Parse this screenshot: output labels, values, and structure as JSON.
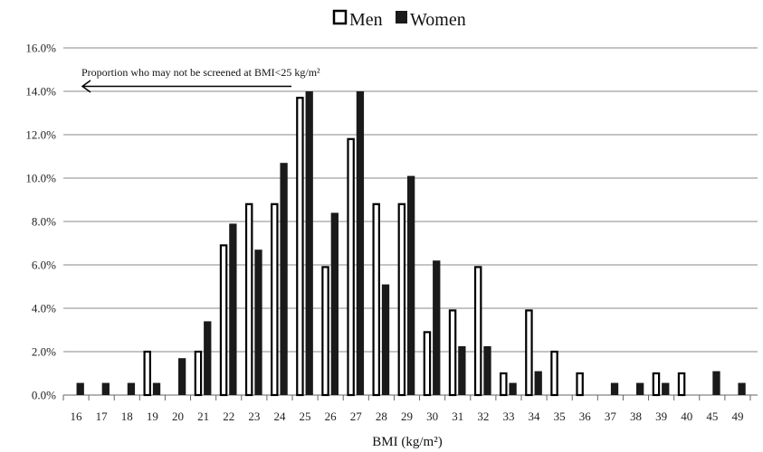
{
  "chart_data": {
    "type": "bar",
    "xlabel": "BMI (kg/m²)",
    "ylabel": "",
    "ylim": [
      0,
      16
    ],
    "y_ticks": [
      "0.0%",
      "2.0%",
      "4.0%",
      "6.0%",
      "8.0%",
      "10.0%",
      "12.0%",
      "14.0%",
      "16.0%"
    ],
    "grid": true,
    "legend_position": "top-center",
    "categories": [
      "16",
      "17",
      "18",
      "19",
      "20",
      "21",
      "22",
      "23",
      "24",
      "25",
      "26",
      "27",
      "28",
      "29",
      "30",
      "31",
      "32",
      "33",
      "34",
      "35",
      "36",
      "37",
      "38",
      "39",
      "40",
      "45",
      "49"
    ],
    "series": [
      {
        "name": "Men",
        "style": "outline",
        "color": "#000000",
        "values": [
          0,
          0,
          0,
          2.0,
          0,
          2.0,
          6.9,
          8.8,
          8.8,
          13.7,
          5.9,
          11.8,
          8.8,
          8.8,
          2.9,
          3.9,
          5.9,
          1.0,
          3.9,
          2.0,
          1.0,
          0,
          0,
          1.0,
          1.0,
          0,
          0
        ]
      },
      {
        "name": "Women",
        "style": "filled",
        "color": "#1a1a1a",
        "values": [
          0.56,
          0.56,
          0.56,
          0.56,
          1.7,
          3.4,
          7.9,
          6.7,
          10.7,
          14.0,
          8.4,
          14.0,
          5.1,
          10.1,
          6.2,
          2.25,
          2.25,
          0.56,
          1.1,
          0,
          0,
          0.56,
          0.56,
          0.56,
          0,
          1.1,
          0.56
        ]
      }
    ],
    "annotation": {
      "text": "Proportion who may not be screened at BMI<25 kg/m²",
      "arrow": "left"
    }
  }
}
